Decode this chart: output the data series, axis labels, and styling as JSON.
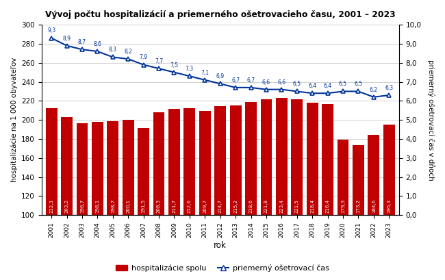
{
  "title": "Vývoj počtu hospitalizácií a priemerného ošetrovacieho času, 2001 – 2023",
  "years": [
    2001,
    2002,
    2003,
    2004,
    2005,
    2006,
    2007,
    2008,
    2009,
    2010,
    2011,
    2012,
    2013,
    2014,
    2015,
    2016,
    2017,
    2018,
    2019,
    2020,
    2021,
    2022,
    2023
  ],
  "hosp_values": [
    212.3,
    203.2,
    196.7,
    198.1,
    198.7,
    200.1,
    191.5,
    208.3,
    211.7,
    212.6,
    209.7,
    214.7,
    215.2,
    218.6,
    221.8,
    223.4,
    221.5,
    218.4,
    216.4,
    179.3,
    173.2,
    184.6,
    195.3
  ],
  "avg_time": [
    9.3,
    8.9,
    8.7,
    8.6,
    8.3,
    8.2,
    7.9,
    7.7,
    7.5,
    7.3,
    7.1,
    6.9,
    6.7,
    6.7,
    6.6,
    6.6,
    6.5,
    6.4,
    6.4,
    6.5,
    6.5,
    6.2,
    6.3
  ],
  "bar_color": "#c00000",
  "line_color": "#003399",
  "ylabel_left": "hospitalizácie na 1 000 obyvateľov",
  "ylabel_right": "priemerný ošetrovací čas v dňoch",
  "xlabel": "rok",
  "ylim_left": [
    100,
    300
  ],
  "ylim_right": [
    0.0,
    10.0
  ],
  "yticks_left": [
    100,
    120,
    140,
    160,
    180,
    200,
    220,
    240,
    260,
    280,
    300
  ],
  "yticks_right": [
    0.0,
    1.0,
    2.0,
    3.0,
    4.0,
    5.0,
    6.0,
    7.0,
    8.0,
    9.0,
    10.0
  ],
  "legend_labels": [
    "hospitalizácie spolu",
    "priemerný ošetrovací čas"
  ],
  "background_color": "#ffffff",
  "grid_color": "#d0d0d0"
}
